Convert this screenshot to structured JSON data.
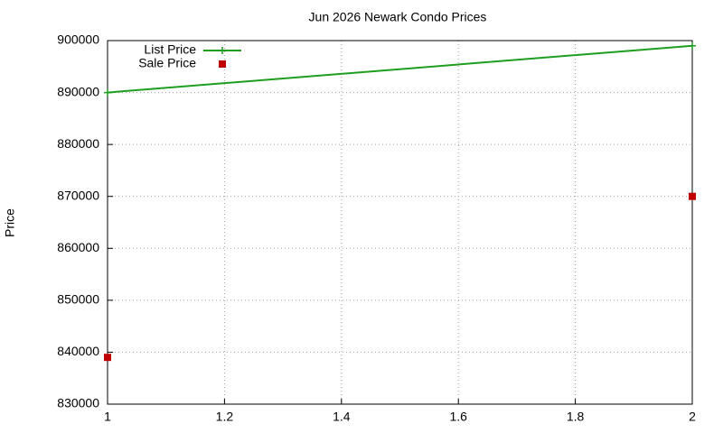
{
  "chart_data": {
    "type": "line",
    "title": "Jun 2026 Newark Condo Prices",
    "y_label": "Price",
    "xlim": [
      1,
      2
    ],
    "xticks": [
      1,
      1.2,
      1.4,
      1.6,
      1.8,
      2
    ],
    "ylim": [
      830000,
      900000
    ],
    "yticks": [
      830000,
      840000,
      850000,
      860000,
      870000,
      880000,
      890000,
      900000
    ],
    "grid": true,
    "legend": "top-left",
    "series": [
      {
        "name": "List Price",
        "color": "#1e9e1e",
        "style": "linespoints",
        "x": [
          1,
          2
        ],
        "values": [
          890000,
          899000
        ]
      },
      {
        "name": "Sale Price",
        "color": "#c00000",
        "style": "points",
        "x": [
          1,
          2
        ],
        "values": [
          839000,
          870000
        ]
      }
    ]
  }
}
